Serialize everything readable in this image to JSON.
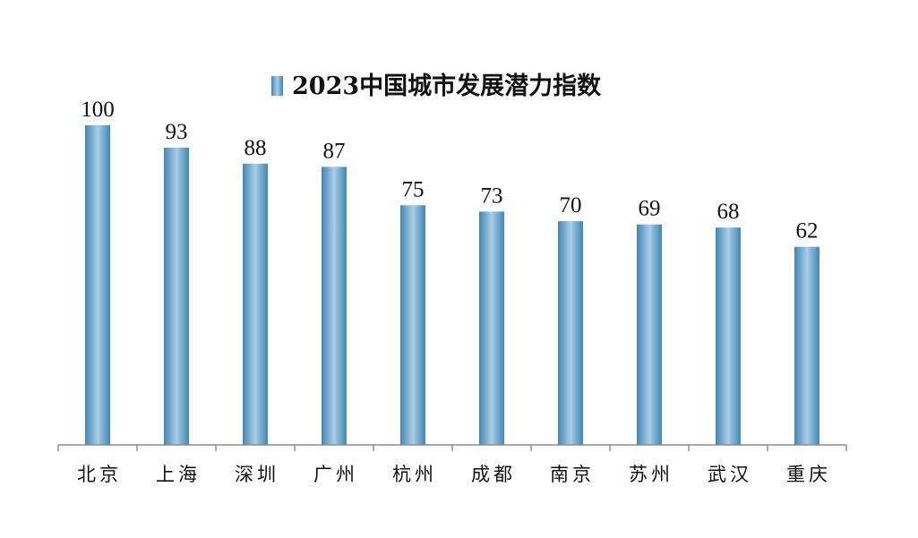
{
  "chart_data": {
    "type": "bar",
    "categories": [
      "北京",
      "上海",
      "深圳",
      "广州",
      "杭州",
      "成都",
      "南京",
      "苏州",
      "武汉",
      "重庆"
    ],
    "series": [
      {
        "name": "2023中国城市发展潜力指数",
        "values": [
          100,
          93,
          88,
          87,
          75,
          73,
          70,
          69,
          68,
          62
        ]
      }
    ],
    "ylim": [
      0,
      100
    ],
    "grid": false,
    "legend_position": "top-center",
    "data_labels": true,
    "colors": {
      "bar_edge": "#3f86b4",
      "bar_center": "#a9cde6",
      "axis": "#8c8c8c"
    }
  }
}
